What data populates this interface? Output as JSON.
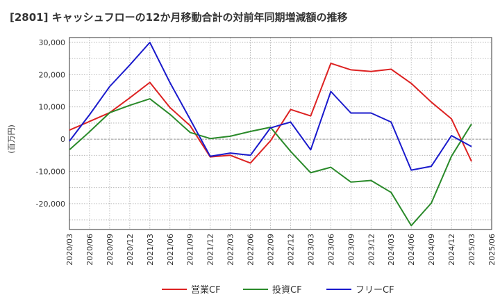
{
  "chart_data": {
    "type": "line",
    "title": "[2801]  キャッシュフローの12か月移動合計の対前年同期増減額の推移",
    "ylabel": "(百万円)",
    "xlabel": "",
    "ylim": [
      -28000,
      31500
    ],
    "yticks": [
      30000,
      20000,
      10000,
      0,
      -10000,
      -20000
    ],
    "ytick_labels": [
      "30,000",
      "20,000",
      "10,000",
      "0",
      "-10,000",
      "-20,000"
    ],
    "x": [
      "2020/03",
      "2020/06",
      "2020/09",
      "2020/12",
      "2021/03",
      "2021/06",
      "2021/09",
      "2021/12",
      "2022/03",
      "2022/06",
      "2022/09",
      "2022/12",
      "2023/03",
      "2023/06",
      "2023/09",
      "2023/12",
      "2024/03",
      "2024/06",
      "2024/09",
      "2024/12",
      "2025/03",
      "2025/06"
    ],
    "grid": true,
    "legend_position": "bottom",
    "series": [
      {
        "name": "営業CF",
        "color": "#dd2222",
        "values": [
          2800,
          5500,
          8200,
          12800,
          17600,
          9800,
          4200,
          -5500,
          -5000,
          -7400,
          -500,
          9200,
          7200,
          23500,
          21500,
          21000,
          21700,
          17300,
          11500,
          6300,
          -6900,
          null
        ]
      },
      {
        "name": "投資CF",
        "color": "#2a8a2a",
        "values": [
          -3300,
          2300,
          8200,
          10500,
          12500,
          7700,
          2100,
          200,
          900,
          2400,
          3700,
          -3800,
          -10400,
          -8700,
          -13300,
          -12800,
          -16500,
          -26800,
          -19800,
          -5300,
          4700,
          null
        ]
      },
      {
        "name": "フリーCF",
        "color": "#1a1acc",
        "values": [
          -600,
          7600,
          16300,
          23000,
          30000,
          17500,
          6200,
          -5300,
          -4300,
          -5000,
          3500,
          5300,
          -3300,
          14800,
          8100,
          8100,
          5300,
          -9600,
          -8400,
          1100,
          -2300,
          null
        ]
      }
    ]
  }
}
